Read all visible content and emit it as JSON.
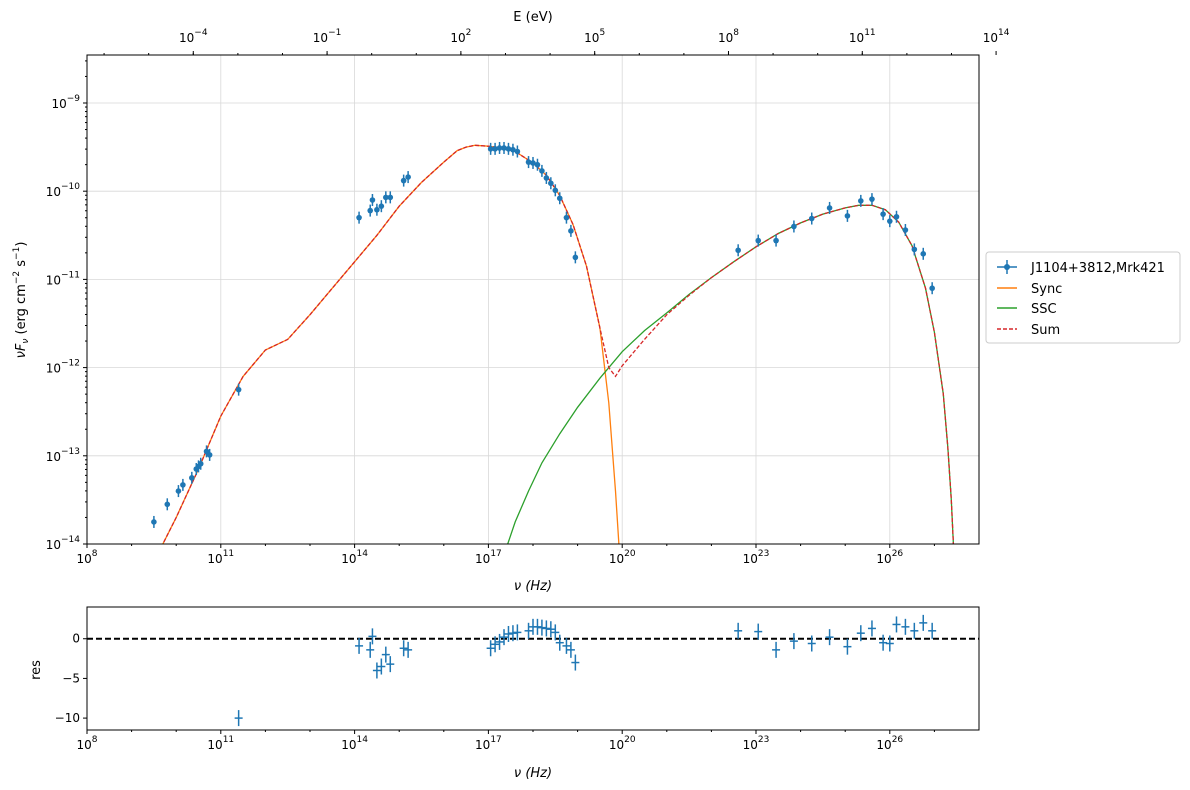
{
  "chart_data": [
    {
      "type": "scatter",
      "panel": "main",
      "xscale": "log",
      "yscale": "log",
      "xlabel": "ν  (Hz)",
      "ylabel": "νF_ν  (erg cm⁻² s⁻¹)",
      "top_xlabel": "E (eV)",
      "xlim": [
        100000000.0,
        1e+28
      ],
      "ylim": [
        1e-14,
        3.5e-09
      ],
      "top_xlim": [
        4.14e-07,
        41400000000000.0
      ],
      "grid": true,
      "legend_placement": "outside-right",
      "x_ticks": [
        "10^8",
        "10^11",
        "10^14",
        "10^17",
        "10^20",
        "10^23",
        "10^26"
      ],
      "y_ticks": [
        "10^-14",
        "10^-13",
        "10^-12",
        "10^-11",
        "10^-10",
        "10^-9"
      ],
      "top_ticks": [
        "10^-4",
        "10^-1",
        "10^2",
        "10^5",
        "10^8",
        "10^11",
        "10^14"
      ],
      "legend": {
        "data": "J1104+3812,Mrk421",
        "sync": "Sync",
        "ssc": "SSC",
        "sum": "Sum"
      },
      "colors": {
        "data": "#1f77b4",
        "sync": "#ff7f0e",
        "ssc": "#2ca02c",
        "sum": "#d62728"
      },
      "observations": [
        [
          9.5,
          -13.75
        ],
        [
          9.8,
          -13.55
        ],
        [
          10.05,
          -13.4
        ],
        [
          10.15,
          -13.33
        ],
        [
          10.35,
          -13.25
        ],
        [
          10.45,
          -13.15
        ],
        [
          10.5,
          -13.12
        ],
        [
          10.55,
          -13.09
        ],
        [
          10.68,
          -12.95
        ],
        [
          10.75,
          -12.99
        ],
        [
          11.4,
          -12.25
        ],
        [
          14.1,
          -10.3
        ],
        [
          14.35,
          -10.22
        ],
        [
          14.4,
          -10.1
        ],
        [
          14.5,
          -10.21
        ],
        [
          14.6,
          -10.17
        ],
        [
          14.7,
          -10.07
        ],
        [
          14.8,
          -10.07
        ],
        [
          15.1,
          -9.88
        ],
        [
          15.2,
          -9.84
        ],
        [
          17.05,
          -9.52
        ],
        [
          17.15,
          -9.52
        ],
        [
          17.25,
          -9.51
        ],
        [
          17.35,
          -9.51
        ],
        [
          17.45,
          -9.52
        ],
        [
          17.55,
          -9.53
        ],
        [
          17.65,
          -9.55
        ],
        [
          17.9,
          -9.67
        ],
        [
          18.0,
          -9.68
        ],
        [
          18.1,
          -9.7
        ],
        [
          18.2,
          -9.77
        ],
        [
          18.3,
          -9.85
        ],
        [
          18.4,
          -9.91
        ],
        [
          18.5,
          -9.99
        ],
        [
          18.6,
          -10.08
        ],
        [
          18.75,
          -10.3
        ],
        [
          18.85,
          -10.45
        ],
        [
          18.95,
          -10.75
        ],
        [
          22.6,
          -10.67
        ],
        [
          23.05,
          -10.56
        ],
        [
          23.45,
          -10.56
        ],
        [
          23.85,
          -10.4
        ],
        [
          24.25,
          -10.31
        ],
        [
          24.65,
          -10.19
        ],
        [
          25.05,
          -10.28
        ],
        [
          25.35,
          -10.11
        ],
        [
          25.6,
          -10.09
        ],
        [
          25.85,
          -10.26
        ],
        [
          26.0,
          -10.34
        ],
        [
          26.15,
          -10.29
        ],
        [
          26.35,
          -10.44
        ],
        [
          26.55,
          -10.66
        ],
        [
          26.75,
          -10.71
        ],
        [
          26.95,
          -11.1
        ]
      ],
      "sync_curve": [
        [
          9.6,
          -14.1
        ],
        [
          10.0,
          -13.7
        ],
        [
          10.5,
          -13.15
        ],
        [
          11.0,
          -12.55
        ],
        [
          11.5,
          -12.1
        ],
        [
          12.0,
          -11.8
        ],
        [
          12.5,
          -11.68
        ],
        [
          13.0,
          -11.4
        ],
        [
          13.5,
          -11.1
        ],
        [
          14.0,
          -10.8
        ],
        [
          14.5,
          -10.5
        ],
        [
          15.0,
          -10.17
        ],
        [
          15.5,
          -9.9
        ],
        [
          16.0,
          -9.67
        ],
        [
          16.3,
          -9.54
        ],
        [
          16.5,
          -9.5
        ],
        [
          16.7,
          -9.48
        ],
        [
          17.0,
          -9.49
        ],
        [
          17.3,
          -9.51
        ],
        [
          17.6,
          -9.55
        ],
        [
          18.0,
          -9.68
        ],
        [
          18.3,
          -9.82
        ],
        [
          18.6,
          -10.05
        ],
        [
          18.9,
          -10.38
        ],
        [
          19.2,
          -10.85
        ],
        [
          19.5,
          -11.55
        ],
        [
          19.7,
          -12.4
        ],
        [
          19.85,
          -13.4
        ],
        [
          19.95,
          -14.2
        ]
      ],
      "ssc_curve": [
        [
          17.4,
          -14.05
        ],
        [
          17.6,
          -13.75
        ],
        [
          17.9,
          -13.4
        ],
        [
          18.2,
          -13.08
        ],
        [
          18.6,
          -12.75
        ],
        [
          19.0,
          -12.45
        ],
        [
          19.5,
          -12.12
        ],
        [
          20.0,
          -11.82
        ],
        [
          20.5,
          -11.58
        ],
        [
          21.0,
          -11.38
        ],
        [
          21.5,
          -11.17
        ],
        [
          22.0,
          -10.98
        ],
        [
          22.5,
          -10.8
        ],
        [
          23.0,
          -10.63
        ],
        [
          23.5,
          -10.48
        ],
        [
          24.0,
          -10.36
        ],
        [
          24.5,
          -10.26
        ],
        [
          25.0,
          -10.19
        ],
        [
          25.3,
          -10.16
        ],
        [
          25.6,
          -10.16
        ],
        [
          25.9,
          -10.21
        ],
        [
          26.2,
          -10.35
        ],
        [
          26.5,
          -10.62
        ],
        [
          26.8,
          -11.1
        ],
        [
          27.0,
          -11.6
        ],
        [
          27.2,
          -12.3
        ],
        [
          27.3,
          -12.9
        ],
        [
          27.38,
          -13.5
        ],
        [
          27.43,
          -14.05
        ]
      ],
      "sum_curve": [
        [
          9.6,
          -14.1
        ],
        [
          10.0,
          -13.7
        ],
        [
          10.5,
          -13.15
        ],
        [
          11.0,
          -12.55
        ],
        [
          11.5,
          -12.1
        ],
        [
          12.0,
          -11.8
        ],
        [
          12.5,
          -11.68
        ],
        [
          13.0,
          -11.4
        ],
        [
          13.5,
          -11.1
        ],
        [
          14.0,
          -10.8
        ],
        [
          14.5,
          -10.5
        ],
        [
          15.0,
          -10.17
        ],
        [
          15.5,
          -9.9
        ],
        [
          16.0,
          -9.67
        ],
        [
          16.3,
          -9.54
        ],
        [
          16.5,
          -9.5
        ],
        [
          16.7,
          -9.48
        ],
        [
          17.0,
          -9.49
        ],
        [
          17.3,
          -9.51
        ],
        [
          17.6,
          -9.55
        ],
        [
          18.0,
          -9.68
        ],
        [
          18.3,
          -9.82
        ],
        [
          18.6,
          -10.05
        ],
        [
          18.9,
          -10.38
        ],
        [
          19.2,
          -10.85
        ],
        [
          19.5,
          -11.55
        ],
        [
          19.7,
          -12.0
        ],
        [
          19.85,
          -12.1
        ],
        [
          20.0,
          -11.98
        ],
        [
          20.5,
          -11.68
        ],
        [
          21.0,
          -11.4
        ],
        [
          21.5,
          -11.18
        ],
        [
          22.0,
          -10.98
        ],
        [
          22.5,
          -10.8
        ],
        [
          23.0,
          -10.63
        ],
        [
          23.5,
          -10.48
        ],
        [
          24.0,
          -10.36
        ],
        [
          24.5,
          -10.26
        ],
        [
          25.0,
          -10.19
        ],
        [
          25.3,
          -10.16
        ],
        [
          25.6,
          -10.16
        ],
        [
          25.9,
          -10.21
        ],
        [
          26.2,
          -10.35
        ],
        [
          26.5,
          -10.62
        ],
        [
          26.8,
          -11.1
        ],
        [
          27.0,
          -11.6
        ],
        [
          27.2,
          -12.3
        ],
        [
          27.3,
          -12.9
        ],
        [
          27.38,
          -13.5
        ],
        [
          27.43,
          -14.05
        ]
      ]
    },
    {
      "type": "scatter",
      "panel": "residuals",
      "xscale": "log",
      "xlabel": "ν  (Hz)",
      "ylabel": "res",
      "xlim": [
        100000000.0,
        1e+28
      ],
      "ylim": [
        -11.5,
        4
      ],
      "x_ticks": [
        "10^8",
        "10^11",
        "10^14",
        "10^17",
        "10^20",
        "10^23",
        "10^26"
      ],
      "y_ticks": [
        "0",
        "−5",
        "−10"
      ],
      "zero_line": "dashed",
      "residuals": [
        [
          11.4,
          -10.0
        ],
        [
          14.1,
          -0.9
        ],
        [
          14.35,
          -1.4
        ],
        [
          14.4,
          0.3
        ],
        [
          14.5,
          -4.0
        ],
        [
          14.6,
          -3.5
        ],
        [
          14.7,
          -2.0
        ],
        [
          14.8,
          -3.2
        ],
        [
          15.1,
          -1.2
        ],
        [
          15.2,
          -1.4
        ],
        [
          17.05,
          -1.2
        ],
        [
          17.15,
          -0.7
        ],
        [
          17.25,
          -0.4
        ],
        [
          17.35,
          0.2
        ],
        [
          17.45,
          0.6
        ],
        [
          17.55,
          0.7
        ],
        [
          17.65,
          0.8
        ],
        [
          17.9,
          1.0
        ],
        [
          18.0,
          1.5
        ],
        [
          18.1,
          1.5
        ],
        [
          18.2,
          1.4
        ],
        [
          18.3,
          1.3
        ],
        [
          18.4,
          1.2
        ],
        [
          18.5,
          0.8
        ],
        [
          18.6,
          -0.5
        ],
        [
          18.75,
          -0.9
        ],
        [
          18.85,
          -1.4
        ],
        [
          18.95,
          -3.0
        ],
        [
          22.6,
          1.0
        ],
        [
          23.05,
          0.9
        ],
        [
          23.45,
          -1.4
        ],
        [
          23.85,
          -0.3
        ],
        [
          24.25,
          -0.6
        ],
        [
          24.65,
          0.2
        ],
        [
          25.05,
          -1.0
        ],
        [
          25.35,
          0.7
        ],
        [
          25.6,
          1.3
        ],
        [
          25.85,
          -0.5
        ],
        [
          26.0,
          -0.6
        ],
        [
          26.15,
          1.8
        ],
        [
          26.35,
          1.5
        ],
        [
          26.55,
          1.0
        ],
        [
          26.75,
          2.0
        ],
        [
          26.95,
          1.0
        ]
      ]
    }
  ]
}
